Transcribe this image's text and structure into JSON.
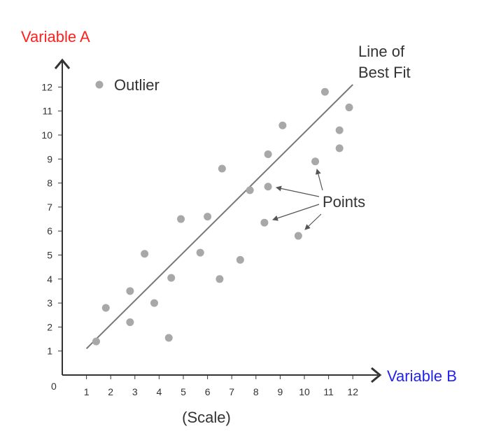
{
  "chart_data": {
    "type": "scatter",
    "ylabel": "Variable A",
    "xlabel": "Variable B",
    "x_sublabel": "(Scale)",
    "origin_label": "0",
    "xlim": [
      0,
      12.7
    ],
    "ylim": [
      0,
      12.6
    ],
    "xticks": [
      1,
      2,
      3,
      4,
      5,
      6,
      7,
      8,
      9,
      10,
      11,
      12
    ],
    "yticks": [
      1,
      2,
      3,
      4,
      5,
      6,
      7,
      8,
      9,
      10,
      11,
      12
    ],
    "grid": false,
    "legend": {
      "label": "Outlier",
      "position": "top-left"
    },
    "best_fit": {
      "label_line1": "Line of",
      "label_line2": "Best Fit",
      "from": [
        1,
        1.1
      ],
      "to": [
        12,
        12.1
      ]
    },
    "points_label": "Points",
    "colors": {
      "ylabel": "#ff2020",
      "xlabel": "#2222ee",
      "points": "#a8a8a8",
      "line": "#777777",
      "axes": "#333333"
    },
    "points": [
      {
        "x": 1.4,
        "y": 1.4
      },
      {
        "x": 1.8,
        "y": 2.8
      },
      {
        "x": 2.8,
        "y": 2.2
      },
      {
        "x": 2.8,
        "y": 3.5
      },
      {
        "x": 3.4,
        "y": 5.05
      },
      {
        "x": 3.8,
        "y": 3.0
      },
      {
        "x": 4.4,
        "y": 1.55
      },
      {
        "x": 4.5,
        "y": 4.05
      },
      {
        "x": 4.9,
        "y": 6.5
      },
      {
        "x": 5.7,
        "y": 5.1
      },
      {
        "x": 6.0,
        "y": 6.6
      },
      {
        "x": 6.5,
        "y": 4.0
      },
      {
        "x": 6.6,
        "y": 8.6
      },
      {
        "x": 7.35,
        "y": 4.8
      },
      {
        "x": 7.75,
        "y": 7.7
      },
      {
        "x": 8.35,
        "y": 6.35
      },
      {
        "x": 8.5,
        "y": 7.85
      },
      {
        "x": 8.5,
        "y": 9.2
      },
      {
        "x": 9.1,
        "y": 10.4
      },
      {
        "x": 9.75,
        "y": 5.8
      },
      {
        "x": 10.45,
        "y": 8.9
      },
      {
        "x": 10.85,
        "y": 11.8
      },
      {
        "x": 11.45,
        "y": 10.2
      },
      {
        "x": 11.45,
        "y": 9.45
      },
      {
        "x": 11.85,
        "y": 11.15
      }
    ]
  }
}
